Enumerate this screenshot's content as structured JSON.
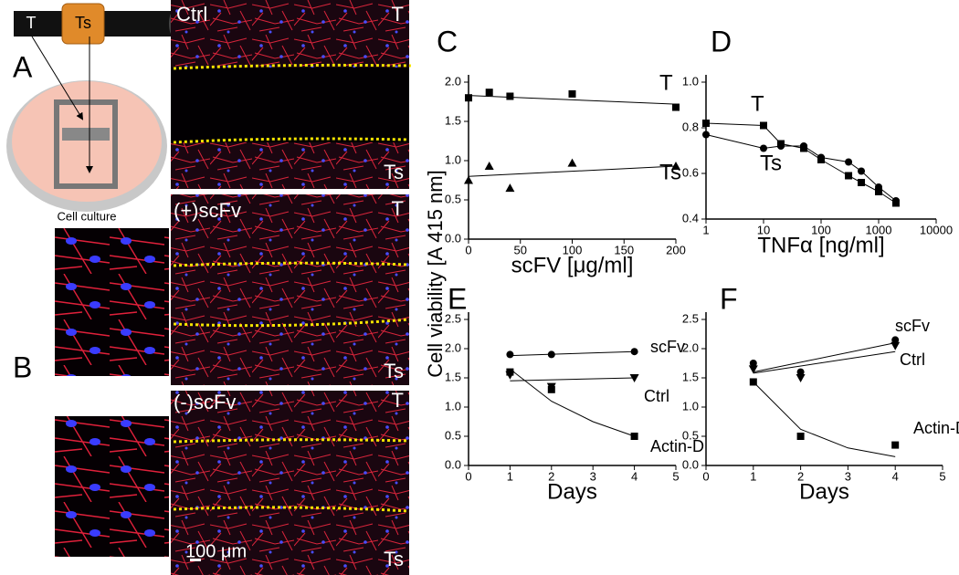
{
  "figure": {
    "panel_a": "A",
    "panel_b": "B",
    "schematic": {
      "t": "T",
      "ts": "Ts",
      "caption": "Cell culture"
    },
    "images": [
      {
        "condition": "Ctrl",
        "top": "T",
        "bottom": "Ts"
      },
      {
        "condition": "(+)scFv",
        "top": "T",
        "bottom": "Ts"
      },
      {
        "condition": "(-)scFv",
        "top": "T",
        "bottom": "Ts"
      }
    ],
    "scale_bar": "100 μm",
    "y_label": "Cell viability [A 415 nm]"
  },
  "chart_data": [
    {
      "type": "scatter",
      "panel": "C",
      "x_label": "scFV [μg/ml]",
      "xlim": [
        0,
        200
      ],
      "xticks": [
        0,
        50,
        100,
        150,
        200
      ],
      "ylim": [
        0,
        2
      ],
      "yticks": [
        {
          "value": 0,
          "label": "0.0"
        },
        {
          "value": 0.5,
          "label": "0.5"
        },
        {
          "value": 1,
          "label": "1.0"
        },
        {
          "value": 1.5,
          "label": "1.5"
        },
        {
          "value": 2,
          "label": "2.0"
        }
      ],
      "series": [
        {
          "name": "T",
          "color": "#000000",
          "marker": "square",
          "x": [
            0,
            20,
            40,
            100,
            200
          ],
          "values": [
            1.8,
            1.87,
            1.82,
            1.85,
            1.68
          ],
          "fit_x": [
            0,
            200
          ],
          "fit_values": [
            1.83,
            1.72
          ]
        },
        {
          "name": "Ts",
          "color": "#000000",
          "marker": "triangle",
          "x": [
            0,
            20,
            40,
            100,
            200
          ],
          "values": [
            0.75,
            0.93,
            0.65,
            0.97,
            0.93
          ],
          "fit_x": [
            0,
            200
          ],
          "fit_values": [
            0.8,
            0.93
          ]
        }
      ]
    },
    {
      "type": "line",
      "panel": "D",
      "x_label": "TNFα [ng/ml]",
      "log_x": true,
      "xlim": [
        1,
        10000
      ],
      "xticks": [
        1,
        10,
        100,
        1000,
        10000
      ],
      "ylim": [
        0.4,
        1
      ],
      "yticks": [
        0.4,
        0.6,
        0.8,
        {
          "value": 1,
          "label": "1.0"
        }
      ],
      "series": [
        {
          "name": "T",
          "color": "#000000",
          "marker": "square",
          "x": [
            1,
            10,
            20,
            50,
            100,
            300,
            500,
            1000,
            2000
          ],
          "values": [
            0.82,
            0.81,
            0.73,
            0.71,
            0.66,
            0.59,
            0.56,
            0.52,
            0.47
          ]
        },
        {
          "name": "Ts",
          "color": "#000000",
          "marker": "circle",
          "x": [
            1,
            10,
            20,
            50,
            100,
            300,
            500,
            1000,
            2000
          ],
          "values": [
            0.77,
            0.71,
            0.72,
            0.72,
            0.67,
            0.65,
            0.61,
            0.54,
            0.48
          ]
        }
      ]
    },
    {
      "type": "scatter",
      "panel": "E",
      "x_label": "Days",
      "xlim": [
        0,
        5
      ],
      "xticks": [
        0,
        1,
        2,
        3,
        4,
        5
      ],
      "ylim": [
        0,
        2.5
      ],
      "yticks": [
        {
          "value": 0,
          "label": "0.0"
        },
        0.5,
        {
          "value": 1,
          "label": "1.0"
        },
        1.5,
        {
          "value": 2,
          "label": "2.0"
        },
        2.5
      ],
      "series": [
        {
          "name": "scFv",
          "color": "#000000",
          "marker": "circle",
          "x": [
            1,
            2,
            4
          ],
          "values": [
            1.9,
            1.9,
            1.95
          ],
          "fit_x": [
            1,
            4
          ],
          "fit_values": [
            1.88,
            1.95
          ]
        },
        {
          "name": "Ctrl",
          "color": "#000000",
          "marker": "triangle-down",
          "x": [
            1,
            2,
            4
          ],
          "values": [
            1.55,
            1.35,
            1.5
          ],
          "fit_x": [
            1,
            4
          ],
          "fit_values": [
            1.45,
            1.5
          ]
        },
        {
          "name": "Actin-D",
          "color": "#000000",
          "marker": "square",
          "x": [
            1,
            2,
            4
          ],
          "values": [
            1.6,
            1.3,
            0.5
          ],
          "fit_x": [
            1,
            2,
            3,
            4
          ],
          "fit_values": [
            1.65,
            1.1,
            0.75,
            0.5
          ]
        }
      ]
    },
    {
      "type": "scatter",
      "panel": "F",
      "x_label": "Days",
      "xlim": [
        0,
        5
      ],
      "xticks": [
        0,
        1,
        2,
        3,
        4,
        5
      ],
      "ylim": [
        0,
        2.5
      ],
      "yticks": [
        {
          "value": 0,
          "label": "0.0"
        },
        0.5,
        {
          "value": 1,
          "label": "1.0"
        },
        1.5,
        {
          "value": 2,
          "label": "2.0"
        },
        2.5
      ],
      "series": [
        {
          "name": "scFv",
          "color": "#000000",
          "marker": "circle",
          "x": [
            1,
            2,
            4
          ],
          "values": [
            1.75,
            1.6,
            2.15
          ],
          "fit_x": [
            1,
            4
          ],
          "fit_values": [
            1.6,
            2.1
          ]
        },
        {
          "name": "Ctrl",
          "color": "#000000",
          "marker": "triangle-down",
          "x": [
            1,
            2,
            4
          ],
          "values": [
            1.65,
            1.5,
            2.05
          ],
          "fit_x": [
            1,
            4
          ],
          "fit_values": [
            1.58,
            1.95
          ]
        },
        {
          "name": "Actin-D",
          "color": "#000000",
          "marker": "square",
          "x": [
            1,
            2,
            4
          ],
          "values": [
            1.43,
            0.5,
            0.35
          ],
          "fit_x": [
            1,
            2,
            3,
            4
          ],
          "fit_values": [
            1.43,
            0.62,
            0.3,
            0.15
          ]
        }
      ]
    }
  ]
}
